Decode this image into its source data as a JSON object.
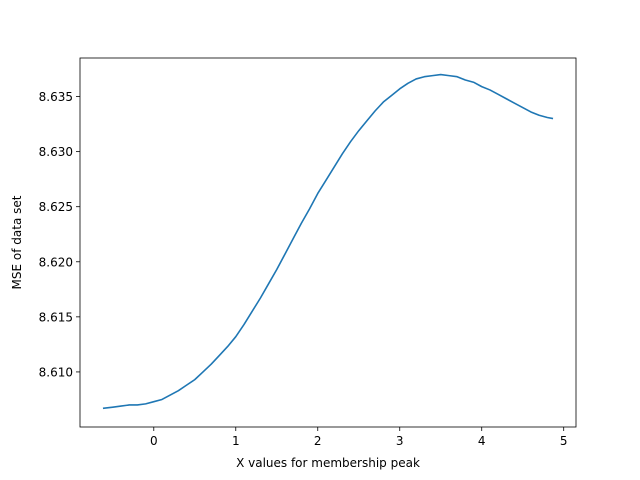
{
  "chart_data": {
    "type": "line",
    "title": "",
    "xlabel": "X values for membership peak",
    "ylabel": "MSE of data set",
    "xlim": [
      -0.9,
      5.15
    ],
    "ylim": [
      8.605,
      8.6385
    ],
    "xticks": [
      0,
      1,
      2,
      3,
      4,
      5
    ],
    "yticks": [
      8.61,
      8.615,
      8.62,
      8.625,
      8.63,
      8.635
    ],
    "xtick_labels": [
      "0",
      "1",
      "2",
      "3",
      "4",
      "5"
    ],
    "ytick_labels": [
      "8.610",
      "8.615",
      "8.620",
      "8.625",
      "8.630",
      "8.635"
    ],
    "grid": false,
    "line_color": "#1f77b4",
    "series": [
      {
        "name": "MSE",
        "x": [
          -0.62,
          -0.5,
          -0.4,
          -0.3,
          -0.2,
          -0.1,
          0.0,
          0.1,
          0.2,
          0.3,
          0.4,
          0.5,
          0.6,
          0.7,
          0.8,
          0.9,
          1.0,
          1.1,
          1.2,
          1.3,
          1.4,
          1.5,
          1.6,
          1.7,
          1.8,
          1.9,
          2.0,
          2.1,
          2.2,
          2.3,
          2.4,
          2.5,
          2.6,
          2.7,
          2.8,
          2.9,
          3.0,
          3.1,
          3.2,
          3.3,
          3.4,
          3.5,
          3.6,
          3.7,
          3.8,
          3.9,
          4.0,
          4.1,
          4.2,
          4.3,
          4.4,
          4.5,
          4.6,
          4.7,
          4.8,
          4.87
        ],
        "values": [
          8.6067,
          8.6068,
          8.6069,
          8.607,
          8.607,
          8.6071,
          8.6073,
          8.6075,
          8.6079,
          8.6083,
          8.6088,
          8.6093,
          8.61,
          8.6107,
          8.6115,
          8.6123,
          8.6132,
          8.6143,
          8.6155,
          8.6167,
          8.618,
          8.6193,
          8.6207,
          8.6221,
          8.6235,
          8.6248,
          8.6262,
          8.6274,
          8.6286,
          8.6298,
          8.6309,
          8.6319,
          8.6328,
          8.6337,
          8.6345,
          8.6351,
          8.6357,
          8.6362,
          8.6366,
          8.6368,
          8.6369,
          8.637,
          8.6369,
          8.6368,
          8.6365,
          8.6363,
          8.6359,
          8.6356,
          8.6352,
          8.6348,
          8.6344,
          8.634,
          8.6336,
          8.6333,
          8.6331,
          8.633
        ]
      }
    ]
  }
}
